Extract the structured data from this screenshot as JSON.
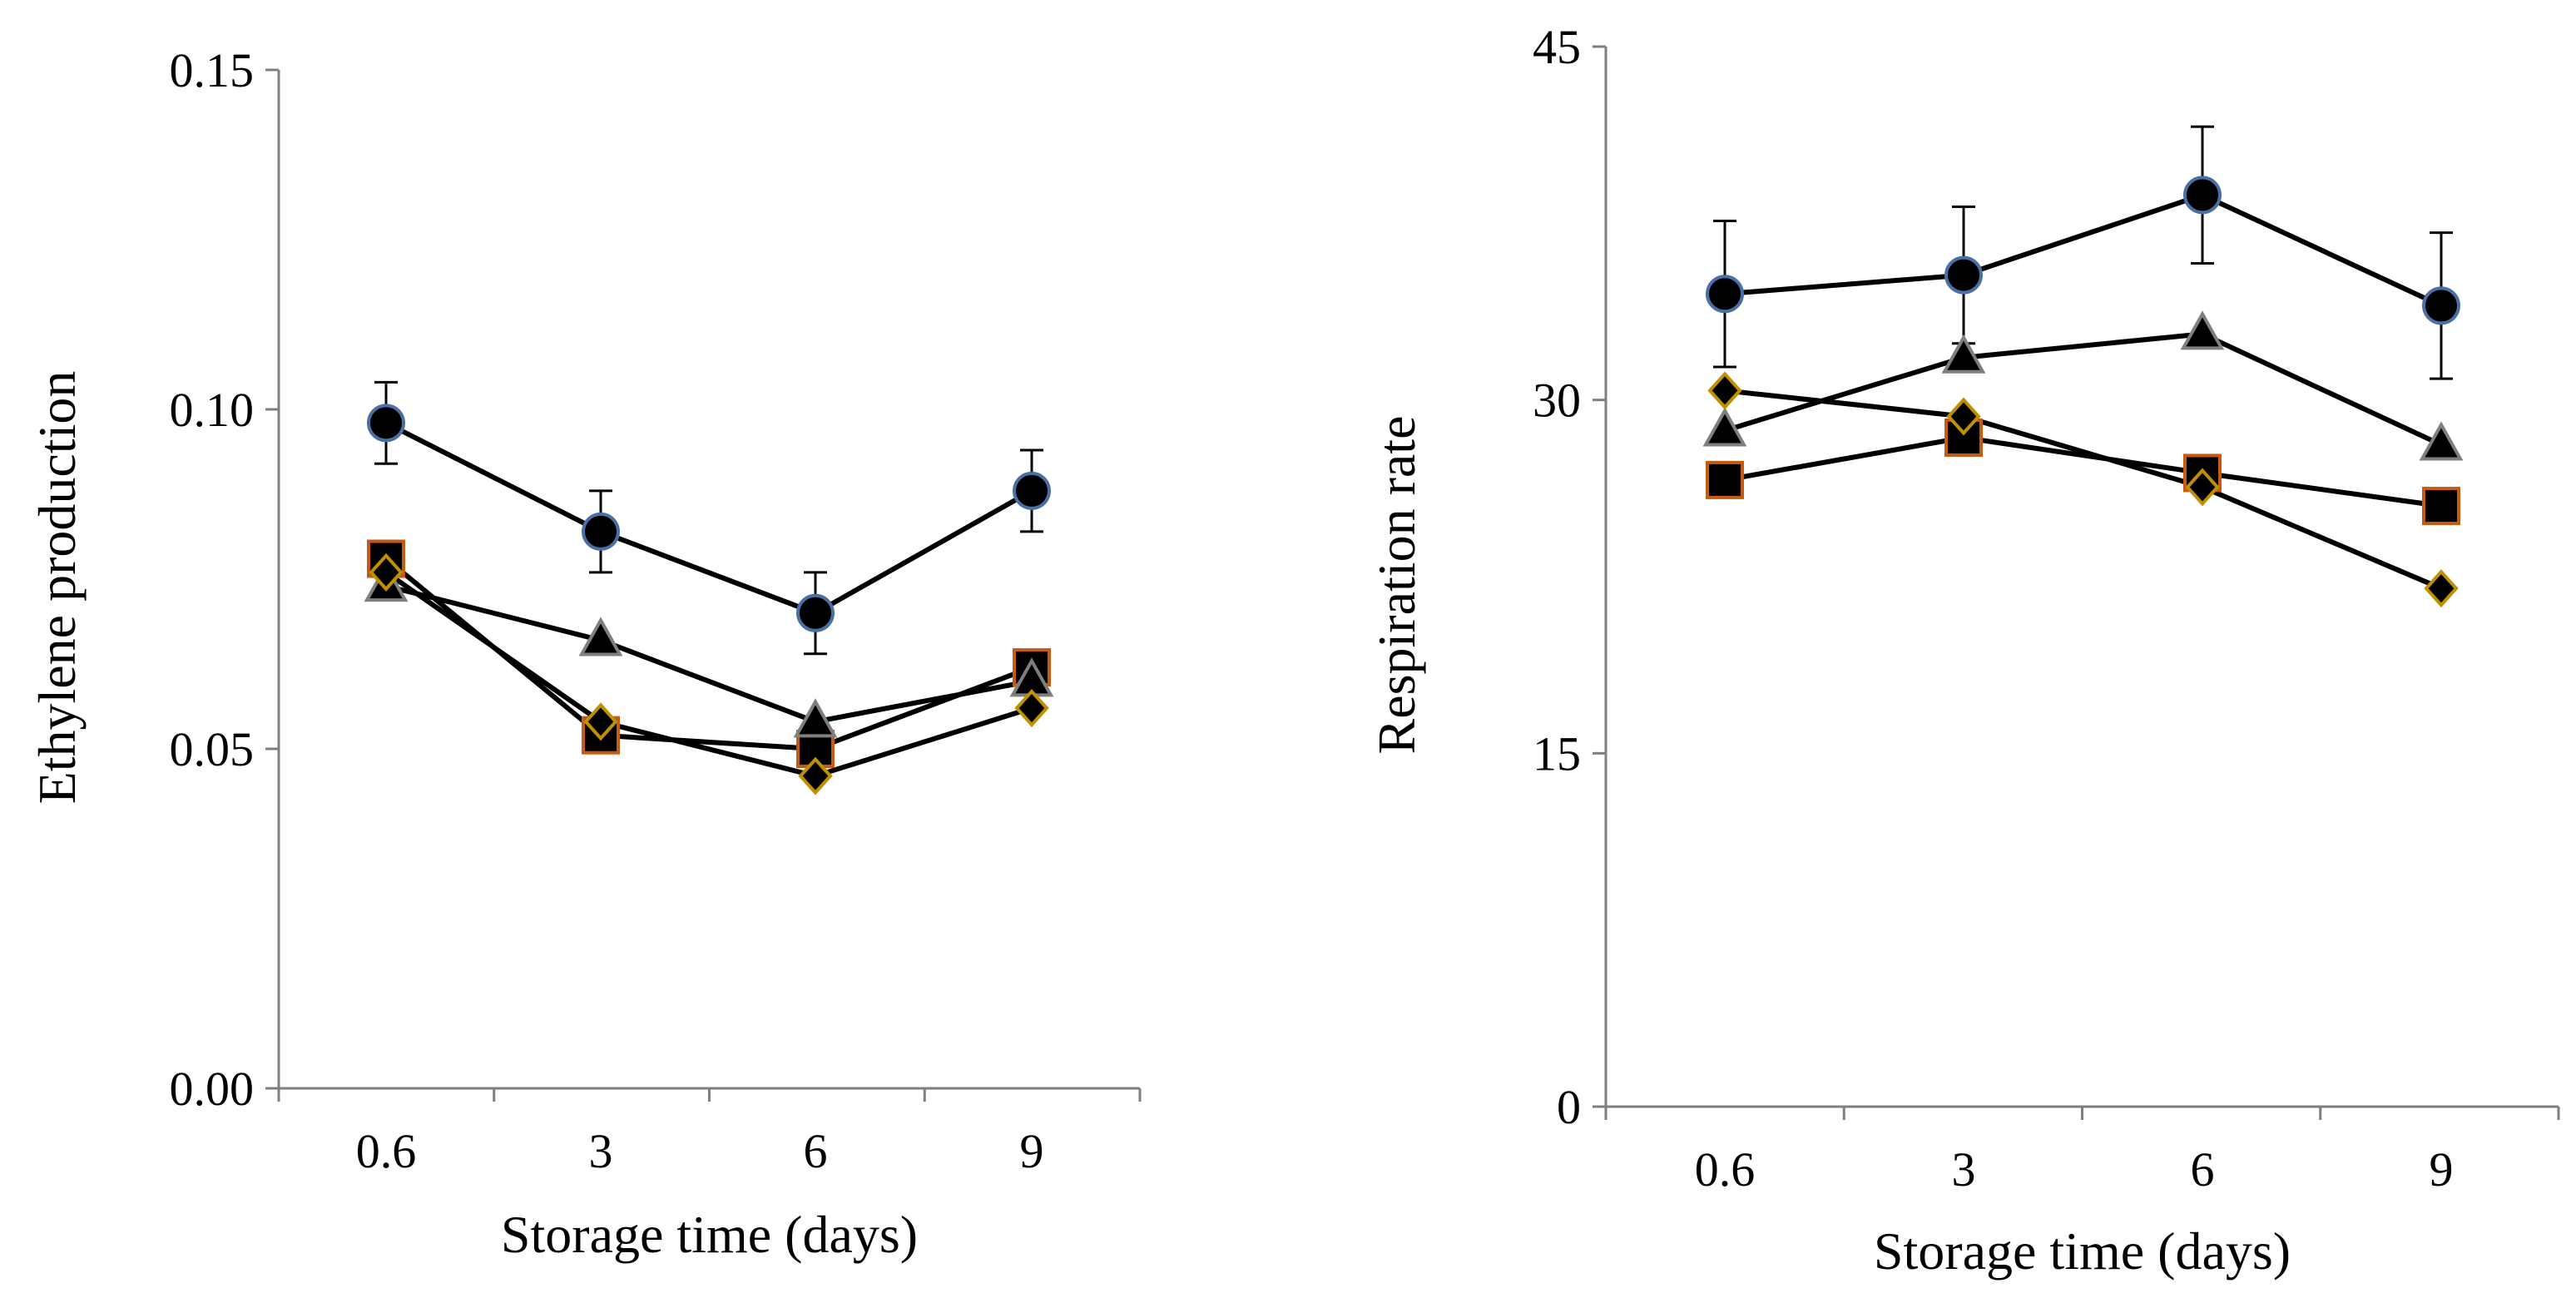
{
  "colors": {
    "axis": "#7f7f7f",
    "line": "#000000",
    "marker_fill": "#000000",
    "circle_edge": "#4a6fa5",
    "square_edge": "#c55a11",
    "triangle_edge": "#7f7f7f",
    "diamond_edge": "#bf9000"
  },
  "chart_data": [
    {
      "type": "line",
      "title": "",
      "xlabel": "Storage time (days)",
      "ylabel": "Ethylene production",
      "categories": [
        "0.6",
        "3",
        "6",
        "9"
      ],
      "ylim": [
        0,
        0.15
      ],
      "yticks": [
        "0.00",
        "0.05",
        "0.10",
        "0.15"
      ],
      "grid": false,
      "legend": "none",
      "series": [
        {
          "name": "circle",
          "marker": "circle",
          "values": [
            0.098,
            0.082,
            0.07,
            0.088
          ],
          "error": [
            0.006,
            0.006,
            0.006,
            0.006
          ]
        },
        {
          "name": "square",
          "marker": "square",
          "values": [
            0.078,
            0.052,
            0.05,
            0.062
          ]
        },
        {
          "name": "triangle",
          "marker": "triangle",
          "values": [
            0.074,
            0.066,
            0.054,
            0.06
          ]
        },
        {
          "name": "diamond",
          "marker": "diamond",
          "values": [
            0.076,
            0.054,
            0.046,
            0.056
          ]
        }
      ]
    },
    {
      "type": "line",
      "title": "",
      "xlabel": "Storage time (days)",
      "ylabel": "Respiration rate",
      "categories": [
        "0.6",
        "3",
        "6",
        "9"
      ],
      "ylim": [
        0,
        45
      ],
      "yticks": [
        "0",
        "15",
        "30",
        "45"
      ],
      "grid": false,
      "legend": "none",
      "series": [
        {
          "name": "circle",
          "marker": "circle",
          "values": [
            34.5,
            35.3,
            38.7,
            34.0
          ],
          "error": [
            3.1,
            2.9,
            2.9,
            3.1
          ]
        },
        {
          "name": "square",
          "marker": "square",
          "values": [
            26.6,
            28.4,
            26.9,
            25.5
          ]
        },
        {
          "name": "triangle",
          "marker": "triangle",
          "values": [
            28.7,
            31.8,
            32.8,
            28.1
          ]
        },
        {
          "name": "diamond",
          "marker": "diamond",
          "values": [
            30.4,
            29.3,
            26.3,
            22.0
          ]
        }
      ]
    }
  ]
}
